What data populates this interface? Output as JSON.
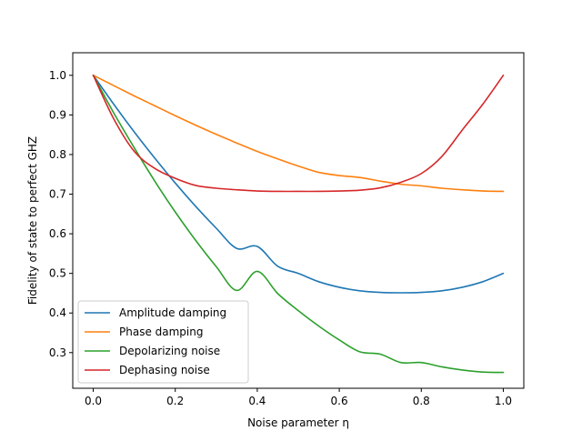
{
  "chart_data": {
    "type": "line",
    "xlabel": "Noise parameter η",
    "ylabel": "Fidelity of state to perfect GHZ",
    "xlim": [
      -0.05,
      1.05
    ],
    "ylim": [
      0.21,
      1.057
    ],
    "x_ticks": [
      0.0,
      0.2,
      0.4,
      0.6,
      0.8,
      1.0
    ],
    "x_tick_labels": [
      "0.0",
      "0.2",
      "0.4",
      "0.6",
      "0.8",
      "1.0"
    ],
    "y_ticks": [
      0.3,
      0.4,
      0.5,
      0.6,
      0.7,
      0.8,
      0.9,
      1.0
    ],
    "y_tick_labels": [
      "0.3",
      "0.4",
      "0.5",
      "0.6",
      "0.7",
      "0.8",
      "0.9",
      "1.0"
    ],
    "grid": false,
    "legend_position": "lower-left",
    "x": [
      0.0,
      0.05,
      0.1,
      0.15,
      0.2,
      0.25,
      0.3,
      0.35,
      0.4,
      0.45,
      0.5,
      0.55,
      0.6,
      0.65,
      0.7,
      0.75,
      0.8,
      0.85,
      0.9,
      0.95,
      1.0
    ],
    "series": [
      {
        "name": "Amplitude damping",
        "color": "#1f77b4",
        "values": [
          1.0,
          0.927,
          0.857,
          0.791,
          0.728,
          0.669,
          0.614,
          0.563,
          0.568,
          0.518,
          0.5,
          0.479,
          0.465,
          0.456,
          0.452,
          0.451,
          0.452,
          0.456,
          0.465,
          0.479,
          0.5
        ]
      },
      {
        "name": "Phase damping",
        "color": "#ff7f0e",
        "values": [
          1.0,
          0.974,
          0.948,
          0.923,
          0.898,
          0.874,
          0.851,
          0.829,
          0.808,
          0.789,
          0.771,
          0.755,
          0.747,
          0.742,
          0.733,
          0.725,
          0.721,
          0.715,
          0.711,
          0.708,
          0.707
        ]
      },
      {
        "name": "Depolarizing noise",
        "color": "#2ca02c",
        "values": [
          1.0,
          0.905,
          0.817,
          0.733,
          0.655,
          0.583,
          0.517,
          0.457,
          0.505,
          0.449,
          0.406,
          0.367,
          0.332,
          0.302,
          0.296,
          0.275,
          0.275,
          0.264,
          0.256,
          0.251,
          0.25
        ]
      },
      {
        "name": "Dephasing noise",
        "color": "#d62728",
        "values": [
          1.0,
          0.89,
          0.808,
          0.765,
          0.74,
          0.722,
          0.715,
          0.711,
          0.708,
          0.707,
          0.707,
          0.707,
          0.708,
          0.71,
          0.716,
          0.73,
          0.752,
          0.795,
          0.862,
          0.927,
          1.0
        ]
      }
    ]
  }
}
